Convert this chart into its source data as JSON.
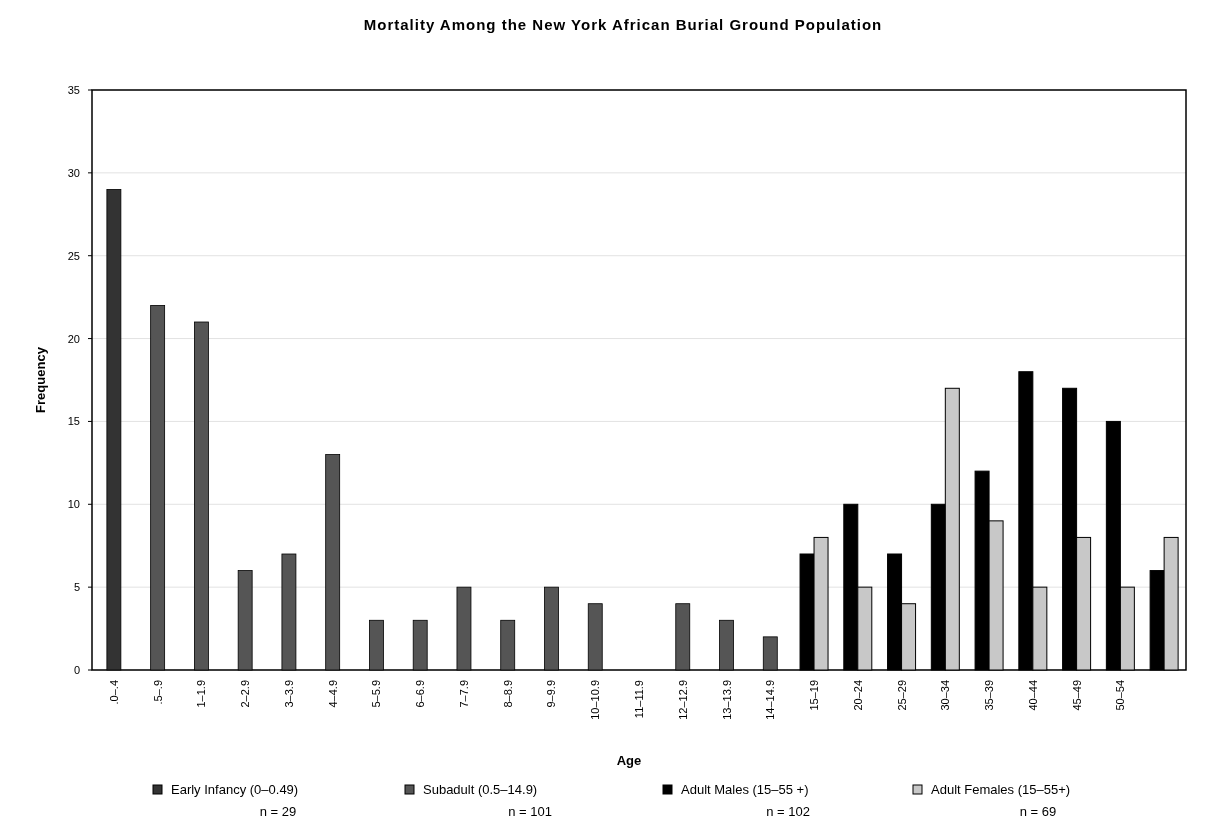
{
  "chart_data": {
    "type": "bar",
    "title": "Mortality Among the New York African Burial Ground Population",
    "xlabel": "Age",
    "ylabel": "Frequency",
    "categories": [
      ".0–.4",
      ".5–.9",
      "1–1.9",
      "2–2.9",
      "3–3.9",
      "4–4.9",
      "5–5.9",
      "6–6.9",
      "7–7.9",
      "8–8.9",
      "9–9.9",
      "10–10.9",
      "11–11.9",
      "12–12.9",
      "13–13.9",
      "14–14.9",
      "15–19",
      "20–24",
      "25–29",
      "30–34",
      "35–39",
      "40–44",
      "45–49",
      "50–54",
      null
    ],
    "series": [
      {
        "name": "Early Infancy (0–0.49)",
        "color": "#333333",
        "values": [
          29,
          null,
          null,
          null,
          null,
          null,
          null,
          null,
          null,
          null,
          null,
          null,
          null,
          null,
          null,
          null,
          null,
          null,
          null,
          null,
          null,
          null,
          null,
          null,
          null
        ]
      },
      {
        "name": "Subadult (0.5–14.9)",
        "color": "#555555",
        "values": [
          null,
          22,
          21,
          6,
          7,
          13,
          3,
          3,
          5,
          3,
          5,
          4,
          0,
          4,
          3,
          2,
          null,
          null,
          null,
          null,
          null,
          null,
          null,
          null,
          null
        ]
      },
      {
        "name": "Adult Males (15–55 +)",
        "color": "#000000",
        "values": [
          null,
          null,
          null,
          null,
          null,
          null,
          null,
          null,
          null,
          null,
          null,
          null,
          null,
          null,
          null,
          null,
          7,
          10,
          7,
          10,
          12,
          18,
          17,
          15,
          6
        ]
      },
      {
        "name": "Adult Females (15–55+)",
        "color": "#c8c8c8",
        "values": [
          null,
          null,
          null,
          null,
          null,
          null,
          null,
          null,
          null,
          null,
          null,
          null,
          null,
          null,
          null,
          null,
          8,
          5,
          4,
          17,
          9,
          5,
          8,
          5,
          8
        ]
      }
    ],
    "ylim": [
      0,
      35
    ],
    "yticks": [
      0,
      5,
      10,
      15,
      20,
      25,
      30,
      35
    ],
    "grid": "y",
    "legend": "bottom",
    "annotations": [
      "n = 29",
      "n = 101",
      "n = 102",
      "n = 69"
    ]
  }
}
